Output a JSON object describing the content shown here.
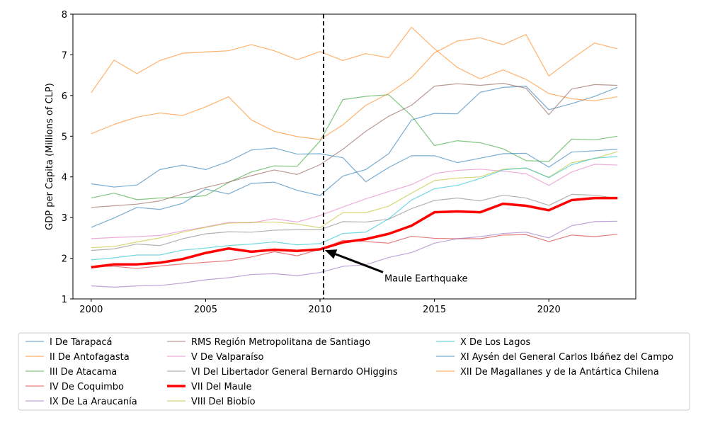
{
  "chart_data": {
    "type": "line",
    "title": "",
    "xlabel": "",
    "ylabel": "GDP per Capita (Millions of CLP)",
    "xlim": [
      1999.2,
      2023.8
    ],
    "ylim": [
      1,
      8
    ],
    "x_ticks": [
      2000,
      2005,
      2010,
      2015,
      2020
    ],
    "y_ticks": [
      1,
      2,
      3,
      4,
      5,
      6,
      7,
      8
    ],
    "grid": false,
    "legend_position": "below plot, 3 columns",
    "vline": {
      "x": 2010.15,
      "style": "dashed",
      "color": "#000000"
    },
    "annotation": {
      "text": "Maule Earthquake",
      "point": [
        2010.15,
        2.2
      ],
      "text_pos": [
        2013,
        1.5
      ]
    },
    "x": [
      2000,
      2001,
      2002,
      2003,
      2004,
      2005,
      2006,
      2007,
      2008,
      2009,
      2010,
      2011,
      2012,
      2013,
      2014,
      2015,
      2016,
      2017,
      2018,
      2019,
      2020,
      2021,
      2022,
      2023
    ],
    "series": [
      {
        "name": "I De Tarapacá",
        "color": "#1f77b4",
        "highlight": false,
        "values": [
          2.76,
          2.99,
          3.25,
          3.2,
          3.35,
          3.7,
          3.58,
          3.84,
          3.87,
          3.67,
          3.54,
          4.02,
          4.18,
          4.57,
          5.4,
          5.56,
          5.55,
          6.08,
          6.2,
          6.23,
          5.65,
          5.8,
          5.98,
          6.2
        ]
      },
      {
        "name": "II De Antofagasta",
        "color": "#ff7f0e",
        "highlight": false,
        "values": [
          6.07,
          6.87,
          6.54,
          6.86,
          7.04,
          7.07,
          7.1,
          7.25,
          7.1,
          6.88,
          7.08,
          6.86,
          7.03,
          6.93,
          7.68,
          7.15,
          6.69,
          6.41,
          6.63,
          6.4,
          6.05,
          5.92,
          5.87,
          5.97
        ]
      },
      {
        "name": "III De Atacama",
        "color": "#2ca02c",
        "highlight": false,
        "values": [
          3.48,
          3.6,
          3.44,
          3.48,
          3.49,
          3.54,
          3.86,
          4.12,
          4.27,
          4.26,
          4.88,
          5.9,
          5.98,
          6.02,
          5.5,
          4.77,
          4.89,
          4.84,
          4.69,
          4.4,
          4.38,
          4.93,
          4.91,
          5.0
        ]
      },
      {
        "name": "IV De Coquimbo",
        "color": "#d62728",
        "highlight": false,
        "values": [
          1.8,
          1.8,
          1.75,
          1.81,
          1.86,
          1.9,
          1.94,
          2.03,
          2.16,
          2.06,
          2.22,
          2.44,
          2.41,
          2.37,
          2.54,
          2.49,
          2.48,
          2.48,
          2.57,
          2.58,
          2.41,
          2.57,
          2.53,
          2.59
        ]
      },
      {
        "name": "IX De La Araucanía",
        "color": "#9467bd",
        "highlight": false,
        "values": [
          1.32,
          1.29,
          1.32,
          1.33,
          1.39,
          1.47,
          1.52,
          1.6,
          1.62,
          1.57,
          1.65,
          1.8,
          1.84,
          2.02,
          2.14,
          2.37,
          2.48,
          2.53,
          2.61,
          2.64,
          2.5,
          2.8,
          2.9,
          2.91
        ]
      },
      {
        "name": "RMS Región Metropolitana de Santiago",
        "color": "#8c564b",
        "highlight": false,
        "values": [
          3.25,
          3.29,
          3.33,
          3.41,
          3.58,
          3.74,
          3.87,
          4.03,
          4.17,
          4.06,
          4.3,
          4.68,
          5.12,
          5.49,
          5.76,
          6.23,
          6.29,
          6.25,
          6.3,
          6.18,
          5.53,
          6.16,
          6.27,
          6.25
        ]
      },
      {
        "name": "V De Valparaíso",
        "color": "#e377c2",
        "highlight": false,
        "values": [
          2.48,
          2.51,
          2.53,
          2.56,
          2.67,
          2.77,
          2.88,
          2.87,
          2.97,
          2.89,
          3.05,
          3.26,
          3.46,
          3.64,
          3.81,
          4.08,
          4.16,
          4.19,
          4.14,
          4.08,
          3.79,
          4.12,
          4.31,
          4.29
        ]
      },
      {
        "name": "VI Del Libertador General Bernardo OHiggins",
        "color": "#7f7f7f",
        "highlight": false,
        "values": [
          2.19,
          2.23,
          2.35,
          2.31,
          2.48,
          2.6,
          2.65,
          2.64,
          2.69,
          2.7,
          2.7,
          2.9,
          2.89,
          2.96,
          3.22,
          3.42,
          3.48,
          3.41,
          3.55,
          3.48,
          3.3,
          3.57,
          3.55,
          3.47
        ]
      },
      {
        "name": "VII Del Maule",
        "color": "#ff0000",
        "highlight": true,
        "values": [
          1.78,
          1.85,
          1.85,
          1.89,
          1.98,
          2.13,
          2.24,
          2.16,
          2.21,
          2.18,
          2.22,
          2.39,
          2.47,
          2.6,
          2.8,
          3.13,
          3.15,
          3.13,
          3.34,
          3.29,
          3.18,
          3.43,
          3.48,
          3.48
        ]
      },
      {
        "name": "VIII Del Biobío",
        "color": "#bcbd22",
        "highlight": false,
        "values": [
          2.26,
          2.29,
          2.4,
          2.5,
          2.64,
          2.76,
          2.86,
          2.88,
          2.89,
          2.84,
          2.75,
          3.12,
          3.12,
          3.28,
          3.6,
          3.91,
          3.97,
          4.0,
          4.19,
          4.22,
          3.99,
          4.35,
          4.45,
          4.62
        ]
      },
      {
        "name": "X De Los Lagos",
        "color": "#17becf",
        "highlight": false,
        "values": [
          1.96,
          2.01,
          2.08,
          2.08,
          2.2,
          2.25,
          2.31,
          2.35,
          2.4,
          2.33,
          2.36,
          2.61,
          2.64,
          2.97,
          3.43,
          3.71,
          3.79,
          3.96,
          4.17,
          4.22,
          3.98,
          4.3,
          4.46,
          4.5
        ]
      },
      {
        "name": "XI Aysén del General Carlos Ibáñez del Campo",
        "color": "#1f77b4",
        "highlight": false,
        "values": [
          3.83,
          3.75,
          3.8,
          4.18,
          4.29,
          4.18,
          4.38,
          4.66,
          4.71,
          4.56,
          4.57,
          4.47,
          3.88,
          4.23,
          4.52,
          4.52,
          4.35,
          4.46,
          4.57,
          4.58,
          4.24,
          4.61,
          4.64,
          4.68
        ]
      },
      {
        "name": "XII De Magallanes y de la Antártica Chilena",
        "color": "#ff7f0e",
        "highlight": false,
        "values": [
          5.06,
          5.29,
          5.47,
          5.57,
          5.51,
          5.72,
          5.97,
          5.4,
          5.12,
          4.99,
          4.92,
          5.28,
          5.76,
          6.05,
          6.44,
          7.05,
          7.34,
          7.42,
          7.25,
          7.5,
          6.48,
          6.9,
          7.29,
          7.15
        ]
      }
    ]
  }
}
